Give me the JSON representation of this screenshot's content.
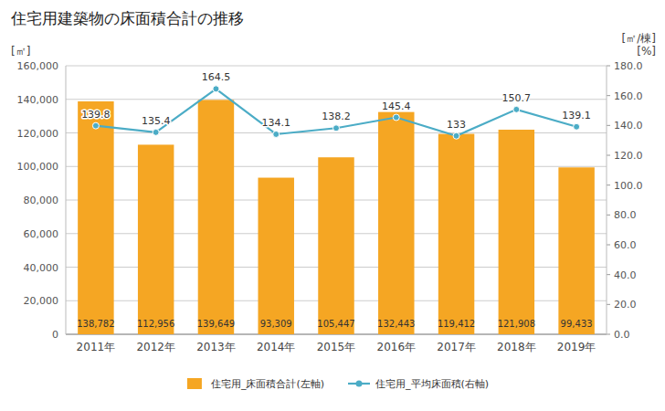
{
  "chart_data": {
    "type": "bar",
    "title": "住宅用建築物の床面積合計の推移",
    "categories": [
      "2011年",
      "2012年",
      "2013年",
      "2014年",
      "2015年",
      "2016年",
      "2017年",
      "2018年",
      "2019年"
    ],
    "series": [
      {
        "name": "住宅用_床面積合計(左軸)",
        "type": "bar",
        "color": "#F5A623",
        "values": [
          138782,
          112956,
          139649,
          93309,
          105447,
          132443,
          119412,
          121908,
          99433
        ],
        "value_labels": [
          "138,782",
          "112,956",
          "139,649",
          "93,309",
          "105,447",
          "132,443",
          "119,412",
          "121,908",
          "99,433"
        ]
      },
      {
        "name": "住宅用_平均床面積(右軸)",
        "type": "line",
        "axis": "y2",
        "color": "#4BACC6",
        "marker": "circle",
        "values": [
          139.8,
          135.4,
          164.5,
          134.1,
          138.2,
          145.4,
          133,
          150.7,
          139.1
        ]
      }
    ],
    "y_label": "[㎡]",
    "y2_label": [
      "[㎡/棟]",
      "[%]"
    ],
    "ylim": [
      0,
      160000
    ],
    "yticks": [
      0,
      {
        "value": 20000,
        "label": "20,000"
      },
      {
        "value": 40000,
        "label": "40,000"
      },
      {
        "value": 60000,
        "label": "60,000"
      },
      {
        "value": 80000,
        "label": "80,000"
      },
      {
        "value": 100000,
        "label": "100,000"
      },
      {
        "value": 120000,
        "label": "120,000"
      },
      {
        "value": 140000,
        "label": "140,000"
      },
      {
        "value": 160000,
        "label": "160,000"
      }
    ],
    "y2lim": [
      0,
      180.0
    ],
    "y2ticks": [
      {
        "value": 0.0,
        "label": "0.0"
      },
      {
        "value": 20.0,
        "label": "20.0"
      },
      {
        "value": 40.0,
        "label": "40.0"
      },
      {
        "value": 60.0,
        "label": "60.0"
      },
      {
        "value": 80.0,
        "label": "80.0"
      },
      {
        "value": 100.0,
        "label": "100.0"
      },
      {
        "value": 120.0,
        "label": "120.0"
      },
      {
        "value": 140.0,
        "label": "140.0"
      },
      {
        "value": 160.0,
        "label": "160.0"
      },
      {
        "value": 180.0,
        "label": "180.0"
      }
    ],
    "grid": true,
    "data_labels": true,
    "legend": "bottom"
  }
}
